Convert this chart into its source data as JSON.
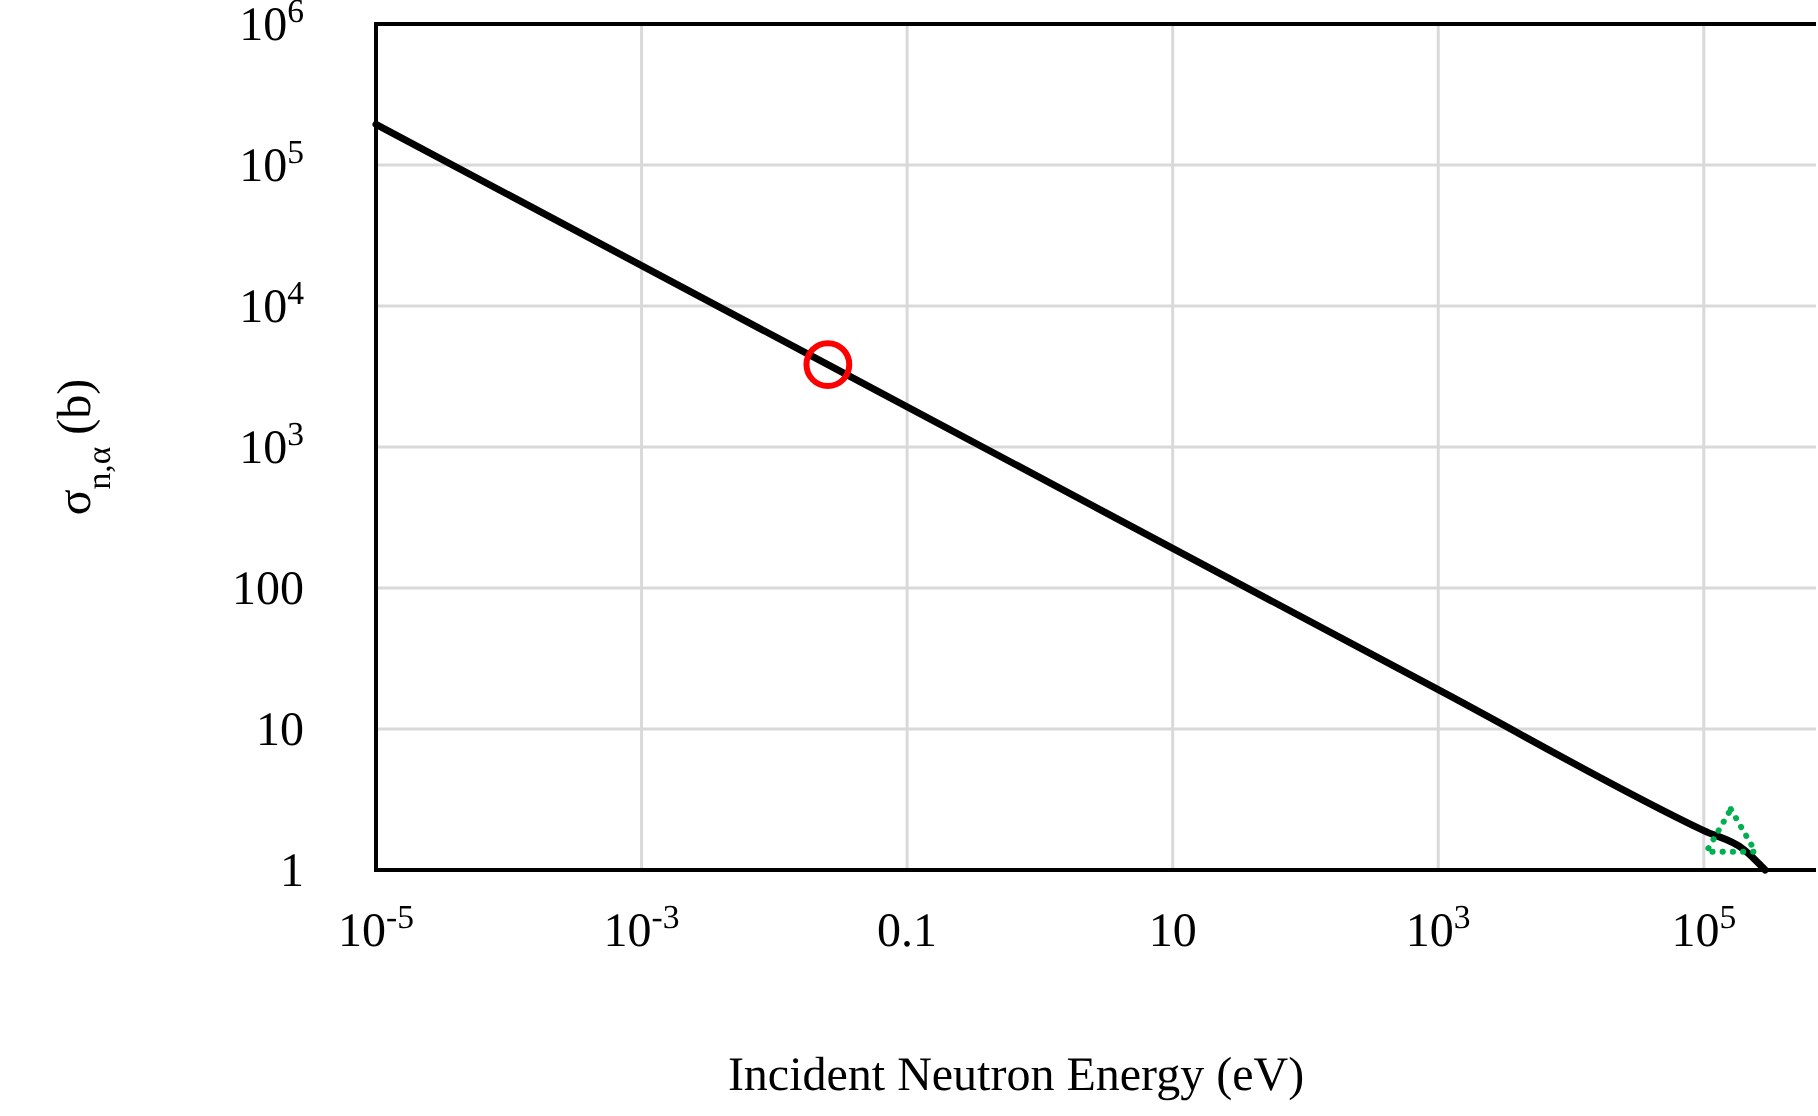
{
  "chart_data": {
    "type": "line",
    "xlabel": "Incident Neutron Energy (eV)",
    "ylabel": "σ$_{n,α}$ (b)",
    "log": "xy",
    "grid": true,
    "xlim": [
      1e-05,
      700000.0
    ],
    "ylim": [
      1,
      1000000.0
    ],
    "xticks": [
      {
        "value": 1e-05,
        "label": "10$^{-5}$"
      },
      {
        "value": 0.001,
        "label": "10$^{-3}$"
      },
      0.1,
      10,
      {
        "value": 1000,
        "label": "10$^{3}$"
      },
      {
        "value": 100000,
        "label": "10$^{5}$"
      }
    ],
    "yticks": [
      1,
      10,
      100,
      {
        "value": 1000,
        "label": "10$^{3}$"
      },
      {
        "value": 10000,
        "label": "10$^{4}$"
      },
      {
        "value": 100000,
        "label": "10$^{5}$"
      },
      {
        "value": 1000000,
        "label": "10$^{6}$"
      }
    ],
    "series": [
      {
        "color": "#000000",
        "line_style": "solid",
        "marker": "none",
        "x": [
          1e-05,
          0.0253,
          1000,
          100000,
          200000,
          290000
        ],
        "values": [
          194000,
          3840,
          19,
          1.9,
          1.4,
          1
        ]
      },
      {
        "type": "scatter",
        "color": "#ff0000",
        "marker": "circle",
        "x": [
          0.0253
        ],
        "values": [
          3840
        ]
      },
      {
        "type": "scatter",
        "color": "#00b050",
        "marker": "triangle",
        "line_style": "dotted",
        "x": [
          160000
        ],
        "values": [
          1.7
        ]
      }
    ]
  }
}
